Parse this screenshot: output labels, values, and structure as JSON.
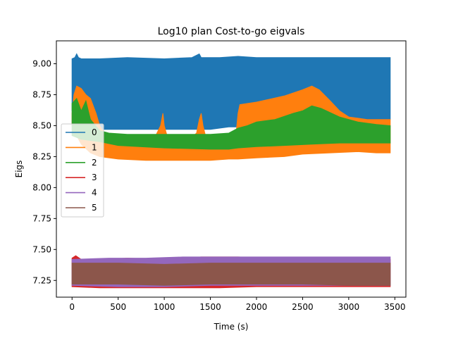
{
  "chart_data": {
    "type": "area",
    "title": "Log10 plan Cost-to-go eigvals",
    "xlabel": "Time (s)",
    "ylabel": "Eigs",
    "xlim": [
      -170,
      3620
    ],
    "ylim": [
      7.115,
      9.185
    ],
    "x_ticks": [
      0,
      500,
      1000,
      1500,
      2000,
      2500,
      3000,
      3500
    ],
    "x_tick_labels": [
      "0",
      "500",
      "1000",
      "1500",
      "2000",
      "2500",
      "3000",
      "3500"
    ],
    "y_ticks": [
      7.25,
      7.5,
      7.75,
      8.0,
      8.25,
      8.5,
      8.75,
      9.0
    ],
    "y_tick_labels": [
      "7.25",
      "7.50",
      "7.75",
      "8.00",
      "8.25",
      "8.50",
      "8.75",
      "9.00"
    ],
    "grid": false,
    "legend_position": "center-left",
    "series": [
      {
        "name": "0",
        "color": "#1f77b4",
        "lower": [
          [
            0,
            8.62
          ],
          [
            40,
            8.55
          ],
          [
            100,
            8.5
          ],
          [
            200,
            8.47
          ],
          [
            400,
            8.47
          ],
          [
            800,
            8.47
          ],
          [
            1200,
            8.47
          ],
          [
            1500,
            8.47
          ],
          [
            1600,
            8.48
          ],
          [
            1700,
            8.49
          ],
          [
            1800,
            8.49
          ],
          [
            2000,
            8.49
          ],
          [
            2300,
            8.49
          ],
          [
            2400,
            8.49
          ],
          [
            2500,
            8.49
          ],
          [
            2700,
            8.5
          ],
          [
            2900,
            8.52
          ],
          [
            3000,
            8.53
          ],
          [
            3200,
            8.54
          ],
          [
            3450,
            8.55
          ]
        ],
        "upper": [
          [
            0,
            9.04
          ],
          [
            30,
            9.05
          ],
          [
            50,
            9.08
          ],
          [
            70,
            9.05
          ],
          [
            100,
            9.04
          ],
          [
            300,
            9.04
          ],
          [
            600,
            9.05
          ],
          [
            1000,
            9.04
          ],
          [
            1300,
            9.05
          ],
          [
            1380,
            9.08
          ],
          [
            1400,
            9.05
          ],
          [
            1600,
            9.05
          ],
          [
            1800,
            9.06
          ],
          [
            2000,
            9.05
          ],
          [
            2400,
            9.05
          ],
          [
            2800,
            9.05
          ],
          [
            3200,
            9.05
          ],
          [
            3450,
            9.05
          ]
        ]
      },
      {
        "name": "1",
        "color": "#ff7f0e",
        "lower": [
          [
            0,
            8.5
          ],
          [
            50,
            8.42
          ],
          [
            100,
            8.35
          ],
          [
            200,
            8.28
          ],
          [
            300,
            8.25
          ],
          [
            500,
            8.23
          ],
          [
            800,
            8.22
          ],
          [
            1200,
            8.22
          ],
          [
            1500,
            8.22
          ],
          [
            1700,
            8.23
          ],
          [
            1800,
            8.23
          ],
          [
            2000,
            8.24
          ],
          [
            2300,
            8.25
          ],
          [
            2500,
            8.27
          ],
          [
            2800,
            8.28
          ],
          [
            3100,
            8.29
          ],
          [
            3300,
            8.28
          ],
          [
            3450,
            8.28
          ]
        ],
        "upper": [
          [
            0,
            8.6
          ],
          [
            20,
            8.75
          ],
          [
            50,
            8.82
          ],
          [
            100,
            8.8
          ],
          [
            150,
            8.75
          ],
          [
            200,
            8.72
          ],
          [
            260,
            8.6
          ],
          [
            300,
            8.5
          ],
          [
            350,
            8.44
          ],
          [
            400,
            8.42
          ],
          [
            500,
            8.41
          ],
          [
            900,
            8.41
          ],
          [
            960,
            8.5
          ],
          [
            985,
            8.6
          ],
          [
            1000,
            8.5
          ],
          [
            1030,
            8.42
          ],
          [
            1300,
            8.41
          ],
          [
            1350,
            8.44
          ],
          [
            1380,
            8.55
          ],
          [
            1400,
            8.6
          ],
          [
            1420,
            8.5
          ],
          [
            1450,
            8.41
          ],
          [
            1700,
            8.41
          ],
          [
            1780,
            8.45
          ],
          [
            1800,
            8.6
          ],
          [
            1820,
            8.67
          ],
          [
            2000,
            8.69
          ],
          [
            2300,
            8.74
          ],
          [
            2500,
            8.79
          ],
          [
            2600,
            8.82
          ],
          [
            2680,
            8.79
          ],
          [
            2800,
            8.7
          ],
          [
            2900,
            8.62
          ],
          [
            3000,
            8.57
          ],
          [
            3200,
            8.55
          ],
          [
            3450,
            8.55
          ]
        ]
      },
      {
        "name": "2",
        "color": "#2ca02c",
        "lower": [
          [
            0,
            8.42
          ],
          [
            100,
            8.39
          ],
          [
            300,
            8.37
          ],
          [
            500,
            8.34
          ],
          [
            1000,
            8.32
          ],
          [
            1500,
            8.31
          ],
          [
            1700,
            8.31
          ],
          [
            1800,
            8.32
          ],
          [
            2000,
            8.33
          ],
          [
            2300,
            8.34
          ],
          [
            2600,
            8.35
          ],
          [
            2900,
            8.36
          ],
          [
            3200,
            8.36
          ],
          [
            3450,
            8.36
          ]
        ],
        "upper": [
          [
            0,
            8.68
          ],
          [
            50,
            8.72
          ],
          [
            100,
            8.62
          ],
          [
            150,
            8.7
          ],
          [
            200,
            8.55
          ],
          [
            300,
            8.46
          ],
          [
            400,
            8.44
          ],
          [
            600,
            8.43
          ],
          [
            900,
            8.43
          ],
          [
            1300,
            8.43
          ],
          [
            1500,
            8.43
          ],
          [
            1700,
            8.44
          ],
          [
            1800,
            8.48
          ],
          [
            1900,
            8.5
          ],
          [
            2000,
            8.53
          ],
          [
            2200,
            8.55
          ],
          [
            2400,
            8.6
          ],
          [
            2500,
            8.62
          ],
          [
            2600,
            8.66
          ],
          [
            2700,
            8.64
          ],
          [
            2900,
            8.57
          ],
          [
            3100,
            8.53
          ],
          [
            3300,
            8.51
          ],
          [
            3450,
            8.5
          ]
        ]
      },
      {
        "name": "3",
        "color": "#d62728",
        "lower": [
          [
            0,
            7.2
          ],
          [
            300,
            7.19
          ],
          [
            800,
            7.19
          ],
          [
            1200,
            7.19
          ],
          [
            1600,
            7.19
          ],
          [
            2000,
            7.2
          ],
          [
            2400,
            7.2
          ],
          [
            2800,
            7.2
          ],
          [
            3200,
            7.2
          ],
          [
            3450,
            7.2
          ]
        ],
        "upper": [
          [
            0,
            7.43
          ],
          [
            40,
            7.45
          ],
          [
            100,
            7.42
          ],
          [
            300,
            7.42
          ],
          [
            600,
            7.43
          ],
          [
            1000,
            7.42
          ],
          [
            1400,
            7.44
          ],
          [
            1800,
            7.44
          ],
          [
            2200,
            7.43
          ],
          [
            2600,
            7.42
          ],
          [
            3000,
            7.42
          ],
          [
            3450,
            7.42
          ]
        ]
      },
      {
        "name": "4",
        "color": "#9467bd",
        "lower": [
          [
            0,
            7.21
          ],
          [
            500,
            7.2
          ],
          [
            1000,
            7.2
          ],
          [
            1500,
            7.21
          ],
          [
            2000,
            7.21
          ],
          [
            2500,
            7.21
          ],
          [
            3000,
            7.21
          ],
          [
            3450,
            7.21
          ]
        ],
        "upper": [
          [
            0,
            7.42
          ],
          [
            400,
            7.43
          ],
          [
            800,
            7.43
          ],
          [
            1200,
            7.44
          ],
          [
            1600,
            7.44
          ],
          [
            2000,
            7.44
          ],
          [
            2400,
            7.44
          ],
          [
            2800,
            7.44
          ],
          [
            3200,
            7.44
          ],
          [
            3450,
            7.44
          ]
        ]
      },
      {
        "name": "5",
        "color": "#8c564b",
        "lower": [
          [
            0,
            7.22
          ],
          [
            500,
            7.22
          ],
          [
            1000,
            7.21
          ],
          [
            1500,
            7.22
          ],
          [
            2000,
            7.22
          ],
          [
            2500,
            7.22
          ],
          [
            3000,
            7.21
          ],
          [
            3450,
            7.21
          ]
        ],
        "upper": [
          [
            0,
            7.39
          ],
          [
            500,
            7.39
          ],
          [
            1000,
            7.38
          ],
          [
            1500,
            7.39
          ],
          [
            2000,
            7.39
          ],
          [
            2500,
            7.39
          ],
          [
            3000,
            7.39
          ],
          [
            3450,
            7.39
          ]
        ]
      }
    ]
  }
}
